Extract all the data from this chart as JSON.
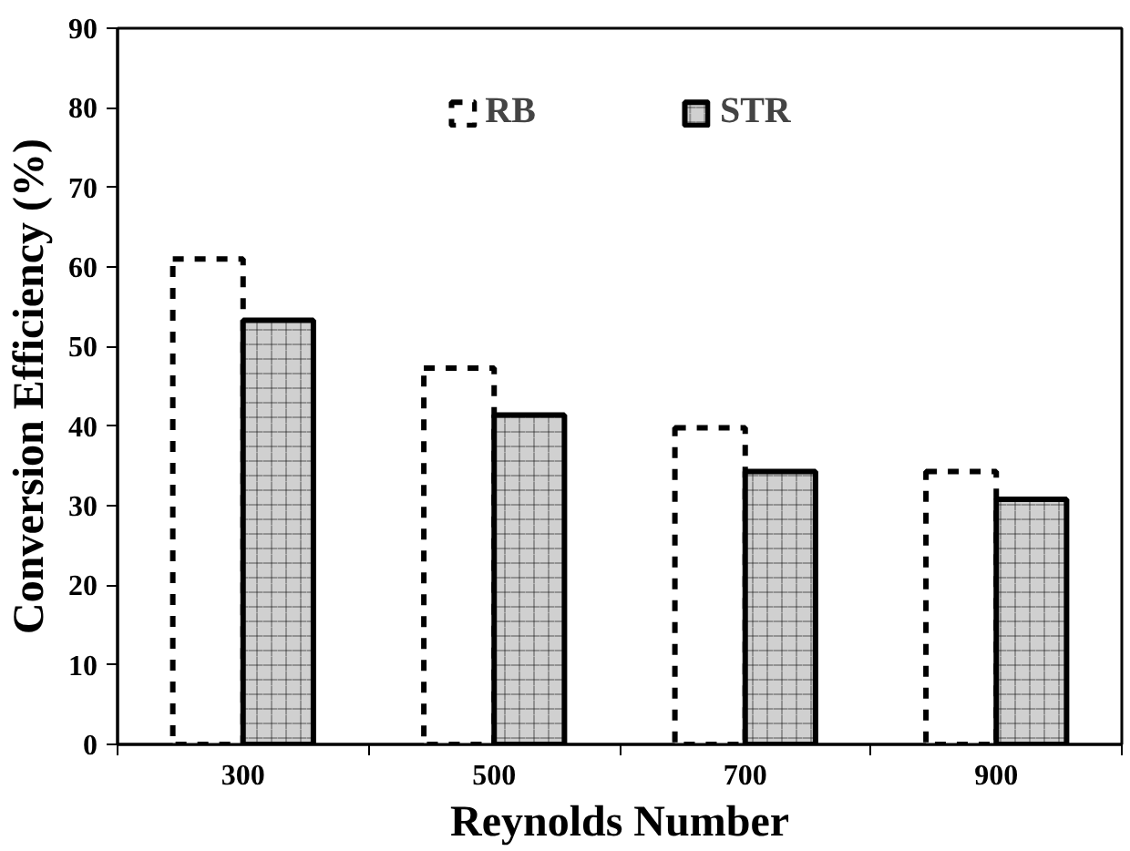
{
  "chart_data": {
    "type": "bar",
    "xlabel": "Reynolds Number",
    "ylabel": "Conversion Efficiency (%)",
    "categories": [
      "300",
      "500",
      "700",
      "900"
    ],
    "series": [
      {
        "name": "RB",
        "color": "#ffffff",
        "line_style": "dashed",
        "values": [
          61,
          47.3,
          39.8,
          34.3
        ]
      },
      {
        "name": "STR",
        "color": "#d0d0d0",
        "line_style": "solid",
        "values": [
          53.3,
          41.4,
          34.3,
          30.8
        ]
      }
    ],
    "ylim": [
      0,
      90
    ],
    "yticks": [
      0,
      10,
      20,
      30,
      40,
      50,
      60,
      70,
      80,
      90
    ],
    "grid": false,
    "legend": "top"
  }
}
